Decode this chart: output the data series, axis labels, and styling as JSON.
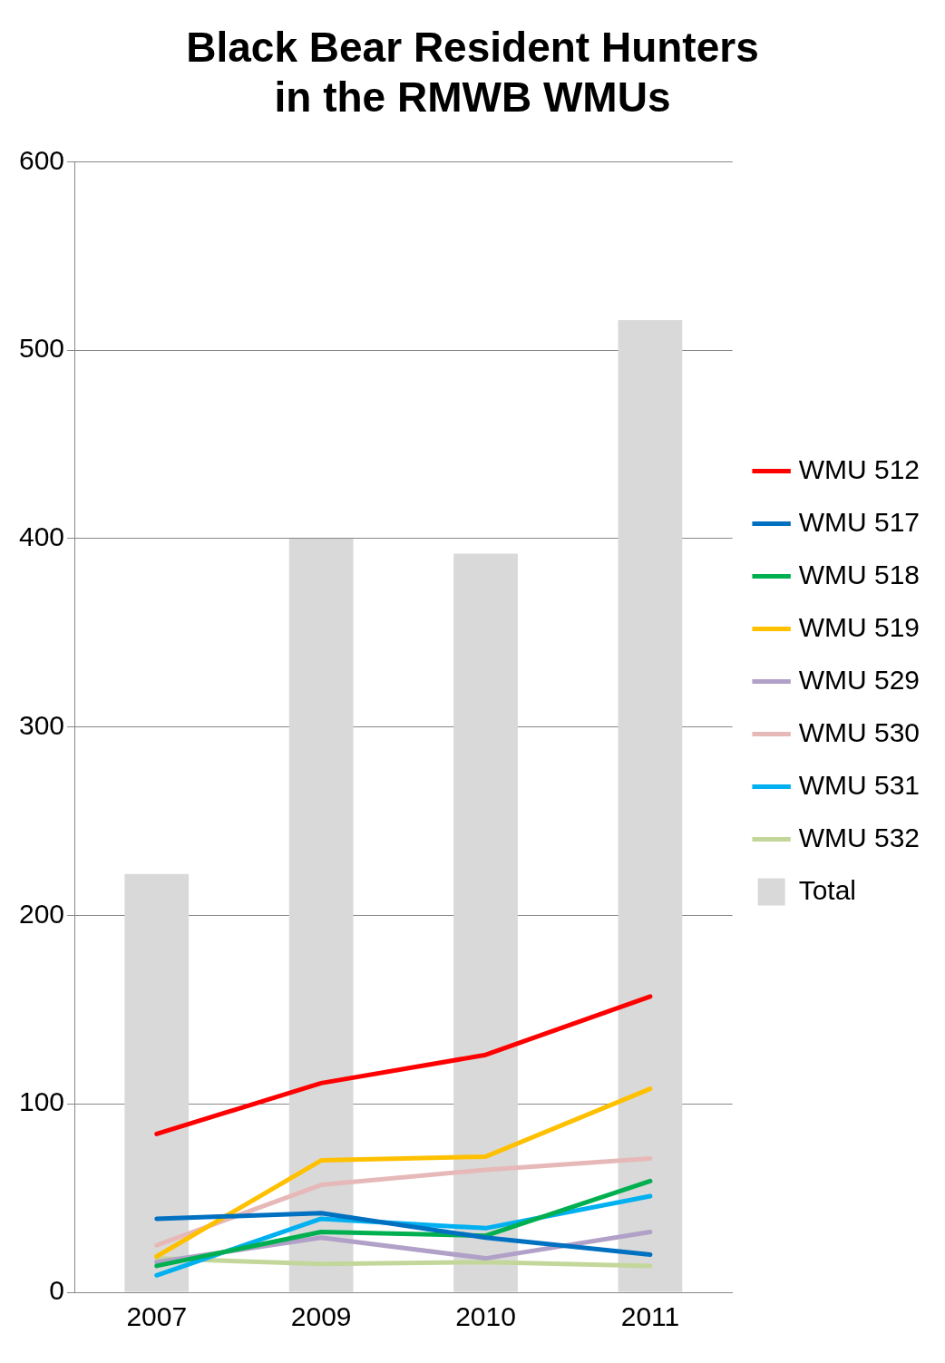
{
  "chart_data": {
    "type": "line",
    "title": "Black Bear Resident Hunters in the RMWB WMUs",
    "categories": [
      "2007",
      "2009",
      "2010",
      "2011"
    ],
    "ylim": [
      0,
      600
    ],
    "yticks": [
      0,
      100,
      200,
      300,
      400,
      500,
      600
    ],
    "grid": "y",
    "legend": "right",
    "series": [
      {
        "name": "Total",
        "type": "bar",
        "color": "#d9d9d9",
        "values": [
          222,
          400,
          392,
          516
        ]
      },
      {
        "name": "WMU 512",
        "color": "#ff0000",
        "values": [
          84,
          111,
          126,
          157
        ]
      },
      {
        "name": "WMU 517",
        "color": "#0070c0",
        "values": [
          39,
          42,
          29,
          20
        ]
      },
      {
        "name": "WMU 518",
        "color": "#00b050",
        "values": [
          14,
          32,
          30,
          59
        ]
      },
      {
        "name": "WMU 519",
        "color": "#ffc000",
        "values": [
          19,
          70,
          72,
          108
        ]
      },
      {
        "name": "WMU 529",
        "color": "#b1a0c7",
        "values": [
          16,
          29,
          18,
          32
        ]
      },
      {
        "name": "WMU 530",
        "color": "#e6b9b8",
        "values": [
          25,
          57,
          65,
          71
        ]
      },
      {
        "name": "WMU 531",
        "color": "#00b0f0",
        "values": [
          9,
          39,
          34,
          51
        ]
      },
      {
        "name": "WMU 532",
        "color": "#c4d79b",
        "values": [
          18,
          15,
          16,
          14
        ]
      }
    ]
  }
}
